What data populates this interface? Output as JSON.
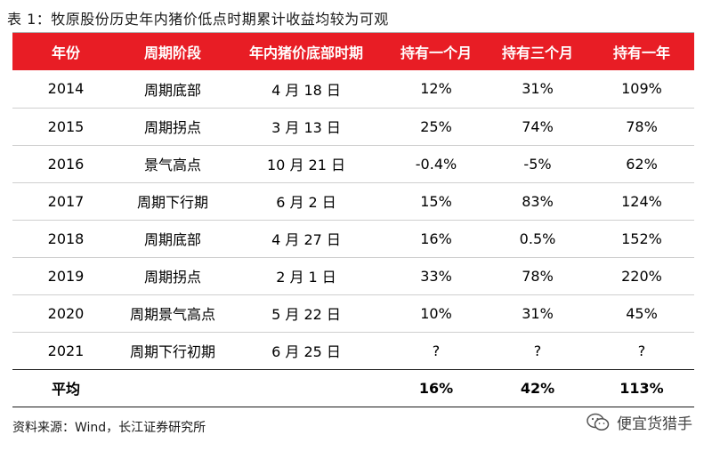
{
  "title": "表 1：牧原股份历史年内猪价低点时期累计收益均较为可观",
  "headers": [
    "年份",
    "周期阶段",
    "年内猪价底部时期",
    "持有一个月",
    "持有三个月",
    "持有一年"
  ],
  "rows": [
    [
      "2014",
      "周期底部",
      "4 月 18 日",
      "12%",
      "31%",
      "109%"
    ],
    [
      "2015",
      "周期拐点",
      "3 月 13 日",
      "25%",
      "74%",
      "78%"
    ],
    [
      "2016",
      "景气高点",
      "10 月 21 日",
      "-0.4%",
      "-5%",
      "62%"
    ],
    [
      "2017",
      "周期下行期",
      "6 月 2 日",
      "15%",
      "83%",
      "124%"
    ],
    [
      "2018",
      "周期底部",
      "4 月 27 日",
      "16%",
      "0.5%",
      "152%"
    ],
    [
      "2019",
      "周期拐点",
      "2 月 1 日",
      "33%",
      "78%",
      "220%"
    ],
    [
      "2020",
      "周期景气高点",
      "5 月 22 日",
      "10%",
      "31%",
      "45%"
    ],
    [
      "2021",
      "周期下行初期",
      "6 月 25 日",
      "?",
      "?",
      "?"
    ]
  ],
  "footer": [
    "平均",
    "",
    "",
    "16%",
    "42%",
    "113%"
  ],
  "source": "资料来源：Wind，长江证券研究所",
  "watermark": {
    "icon": "wechat-icon",
    "text": "便宜货猎手"
  }
}
